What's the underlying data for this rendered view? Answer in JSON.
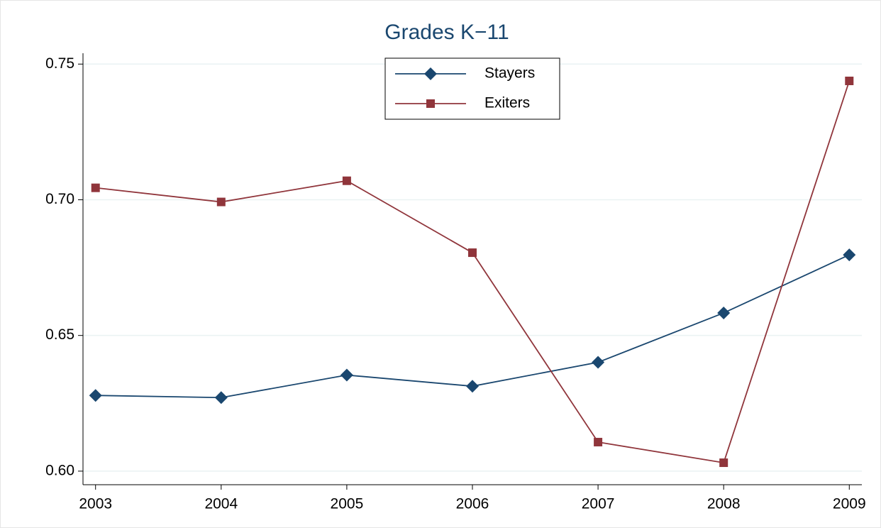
{
  "chart_data": {
    "type": "line",
    "title": "Grades K−11",
    "x": [
      2003,
      2004,
      2005,
      2006,
      2007,
      2008,
      2009
    ],
    "series": [
      {
        "name": "Stayers",
        "color": "#1a476f",
        "marker": "diamond",
        "values": [
          0.6279,
          0.6271,
          0.6354,
          0.6313,
          0.6401,
          0.6583,
          0.6797
        ]
      },
      {
        "name": "Exiters",
        "color": "#90353b",
        "marker": "square",
        "values": [
          0.7044,
          0.6992,
          0.707,
          0.6805,
          0.6107,
          0.6031,
          0.7438
        ]
      }
    ],
    "xlim": [
      2002.9,
      2009.1
    ],
    "xticks": [
      2003,
      2004,
      2005,
      2006,
      2007,
      2008,
      2009
    ],
    "ylim": [
      0.595,
      0.754
    ],
    "yticks": [
      {
        "value": 0.6,
        "label": "0.60"
      },
      {
        "value": 0.65,
        "label": "0.65"
      },
      {
        "value": 0.7,
        "label": "0.70"
      },
      {
        "value": 0.75,
        "label": "0.75"
      }
    ],
    "grid": true
  }
}
